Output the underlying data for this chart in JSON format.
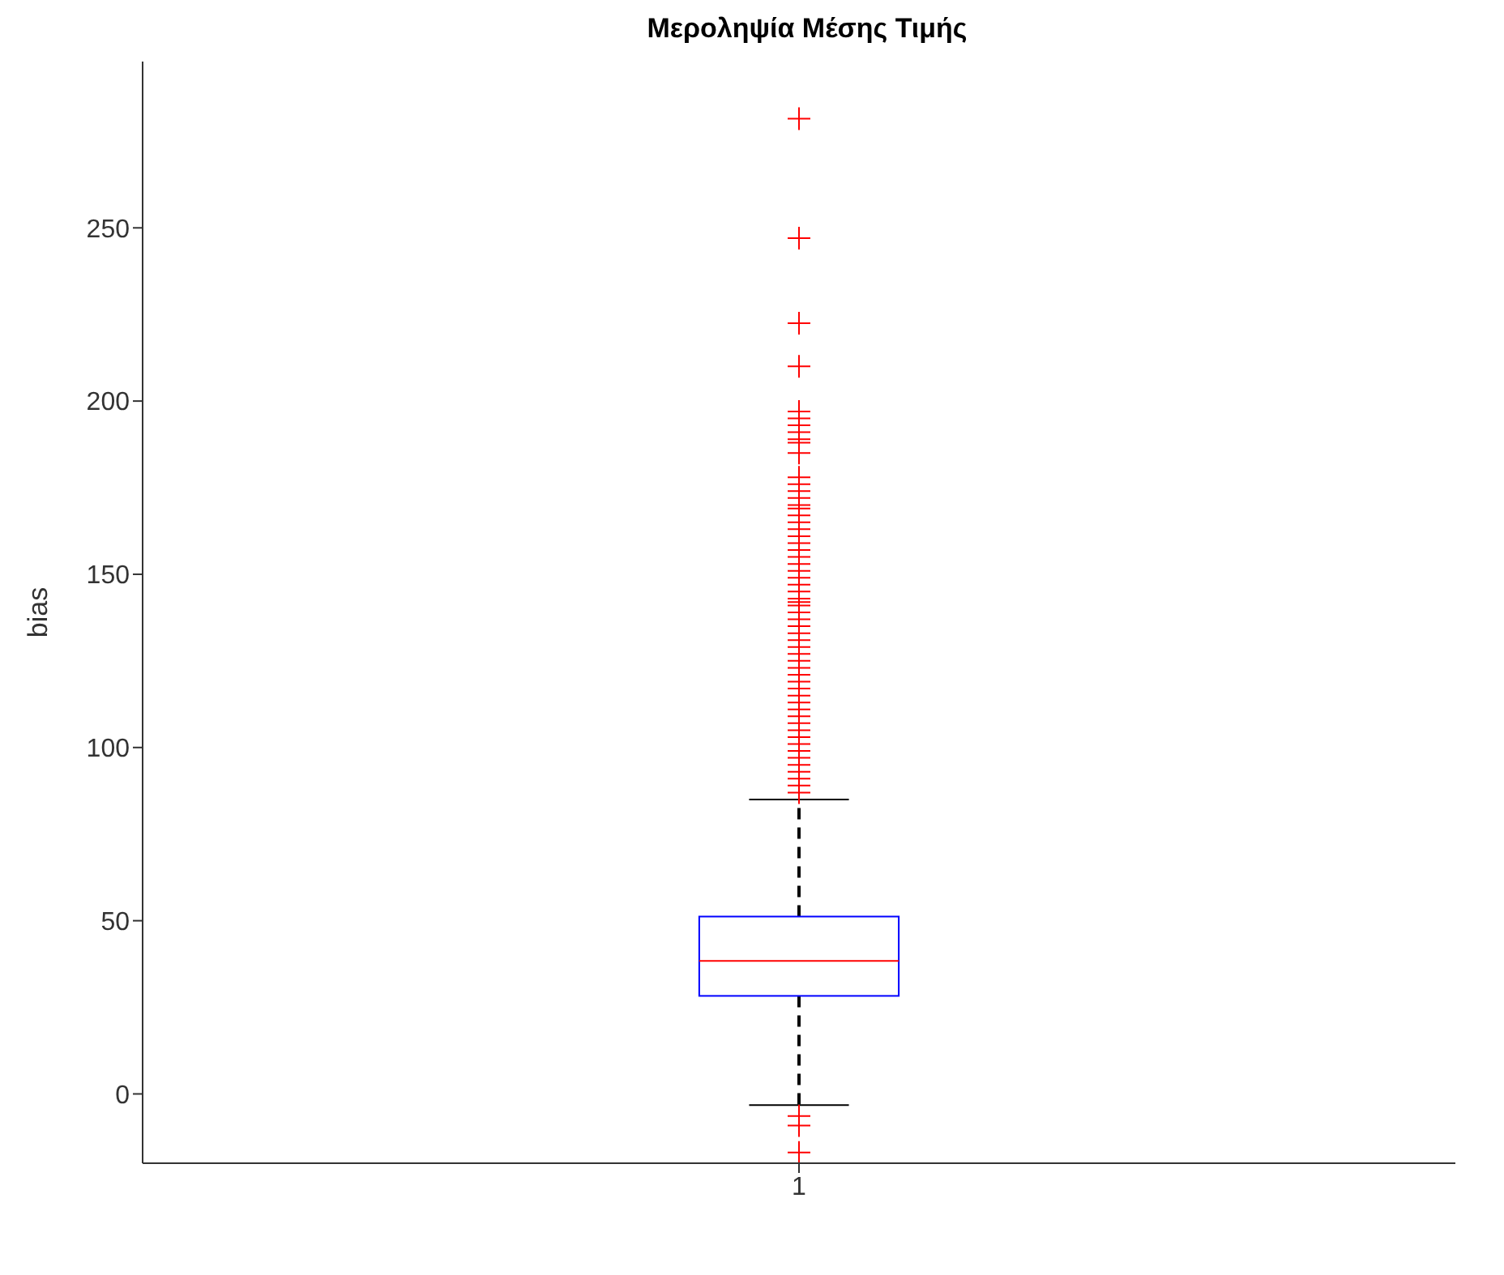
{
  "chart_data": {
    "type": "box",
    "title": "Μεροληψία Μέσης Τιμής",
    "ylabel": "bias",
    "categories": [
      "1"
    ],
    "ylim": [
      -20,
      298
    ],
    "yticks": [
      0,
      50,
      100,
      150,
      200,
      250
    ],
    "series": [
      {
        "color": "#0000ff",
        "boxes": [
          {
            "low": -3.2,
            "q1": 28.3,
            "median": 38.4,
            "q3": 51.2,
            "high": 85,
            "outliers": [
              -6.4,
              -9.1,
              -16.9,
              281.5,
              247,
              222.5,
              210,
              197,
              195,
              193,
              191,
              189,
              188,
              185,
              178,
              176,
              174,
              172,
              170,
              169,
              167,
              165,
              163,
              161,
              159,
              157,
              155,
              153,
              151,
              149,
              147,
              145,
              143,
              142,
              141,
              139,
              137,
              135,
              133,
              131,
              129,
              127,
              125,
              123,
              121,
              119,
              117,
              115,
              113,
              111,
              109,
              107,
              105,
              103,
              101,
              99,
              97,
              95,
              93,
              91,
              89,
              87
            ]
          }
        ]
      }
    ]
  }
}
